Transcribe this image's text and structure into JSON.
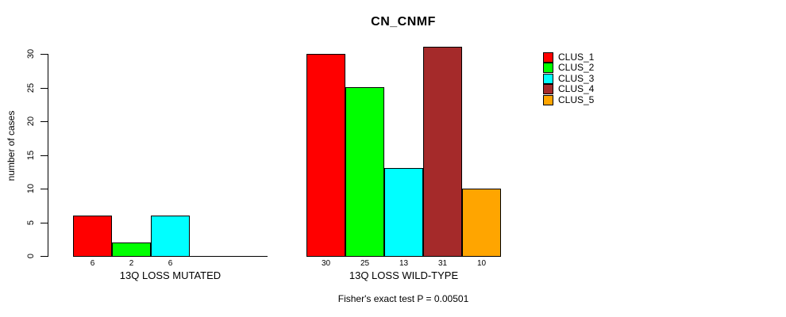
{
  "title": "CN_CNMF",
  "footer": "Fisher's exact test P = 0.00501",
  "chart_data": {
    "type": "bar",
    "title": "CN_CNMF",
    "xlabel": "",
    "ylabel": "number of cases",
    "ylim": [
      0,
      30
    ],
    "yticks": [
      0,
      5,
      10,
      15,
      20,
      25,
      30
    ],
    "grid": false,
    "legend_position": "right",
    "series": [
      {
        "name": "CLUS_1",
        "color": "#FF0000",
        "values": [
          6,
          30
        ]
      },
      {
        "name": "CLUS_2",
        "color": "#00FF00",
        "values": [
          2,
          25
        ]
      },
      {
        "name": "CLUS_3",
        "color": "#00FFFF",
        "values": [
          6,
          13
        ]
      },
      {
        "name": "CLUS_4",
        "color": "#A52A2A",
        "values": [
          0,
          31
        ]
      },
      {
        "name": "CLUS_5",
        "color": "#FFA500",
        "values": [
          0,
          10
        ]
      }
    ],
    "groups": [
      {
        "label": "13Q LOSS MUTATED",
        "values": [
          6,
          2,
          6,
          0,
          0
        ],
        "bar_labels": [
          "6",
          "2",
          "6",
          "",
          ""
        ]
      },
      {
        "label": "13Q LOSS WILD-TYPE",
        "values": [
          30,
          25,
          13,
          31,
          10
        ],
        "bar_labels": [
          "30",
          "25",
          "13",
          "31",
          "10"
        ]
      }
    ],
    "legend": [
      {
        "label": "CLUS_1",
        "color": "#FF0000"
      },
      {
        "label": "CLUS_2",
        "color": "#00FF00"
      },
      {
        "label": "CLUS_3",
        "color": "#00FFFF"
      },
      {
        "label": "CLUS_4",
        "color": "#A52A2A"
      },
      {
        "label": "CLUS_5",
        "color": "#FFA500"
      }
    ],
    "annotation": "Fisher's exact test P = 0.00501"
  }
}
